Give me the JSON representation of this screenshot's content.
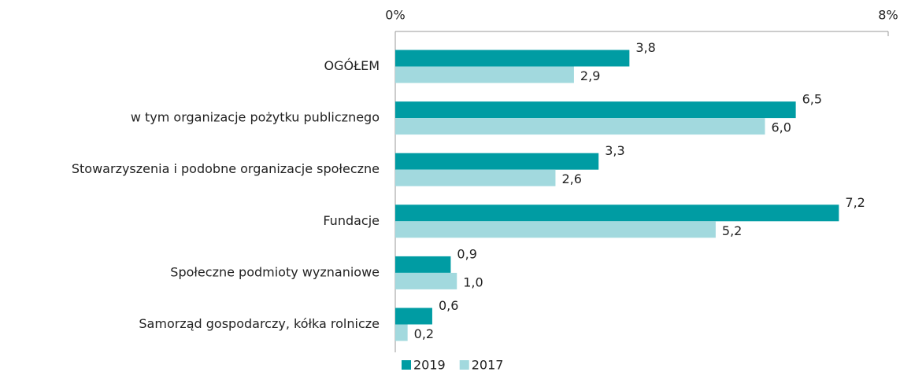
{
  "chart_data": {
    "type": "hbar",
    "categories": [
      "OGÓŁEM",
      "w tym organizacje pożytku publicznego",
      "Stowarzyszenia i podobne organizacje społeczne",
      "Fundacje",
      "Społeczne podmioty wyznaniowe",
      "Samorząd gospodarczy, kółka rolnicze"
    ],
    "series": [
      {
        "name": "2019",
        "color": "#009ca3",
        "values": [
          3.8,
          6.5,
          3.3,
          7.2,
          0.9,
          0.6
        ],
        "value_labels": [
          "3,8",
          "6,5",
          "3,3",
          "7,2",
          "0,9",
          "0,6"
        ]
      },
      {
        "name": "2017",
        "color": "#a2d9de",
        "values": [
          2.9,
          6.0,
          2.6,
          5.2,
          1.0,
          0.2
        ],
        "value_labels": [
          "2,9",
          "6,0",
          "2,6",
          "5,2",
          "1,0",
          "0,2"
        ]
      }
    ],
    "xlim": [
      0,
      8
    ],
    "xticks": [
      {
        "value": 0,
        "label": "0%"
      },
      {
        "value": 8,
        "label": "8%"
      }
    ],
    "legend": "bottom"
  }
}
